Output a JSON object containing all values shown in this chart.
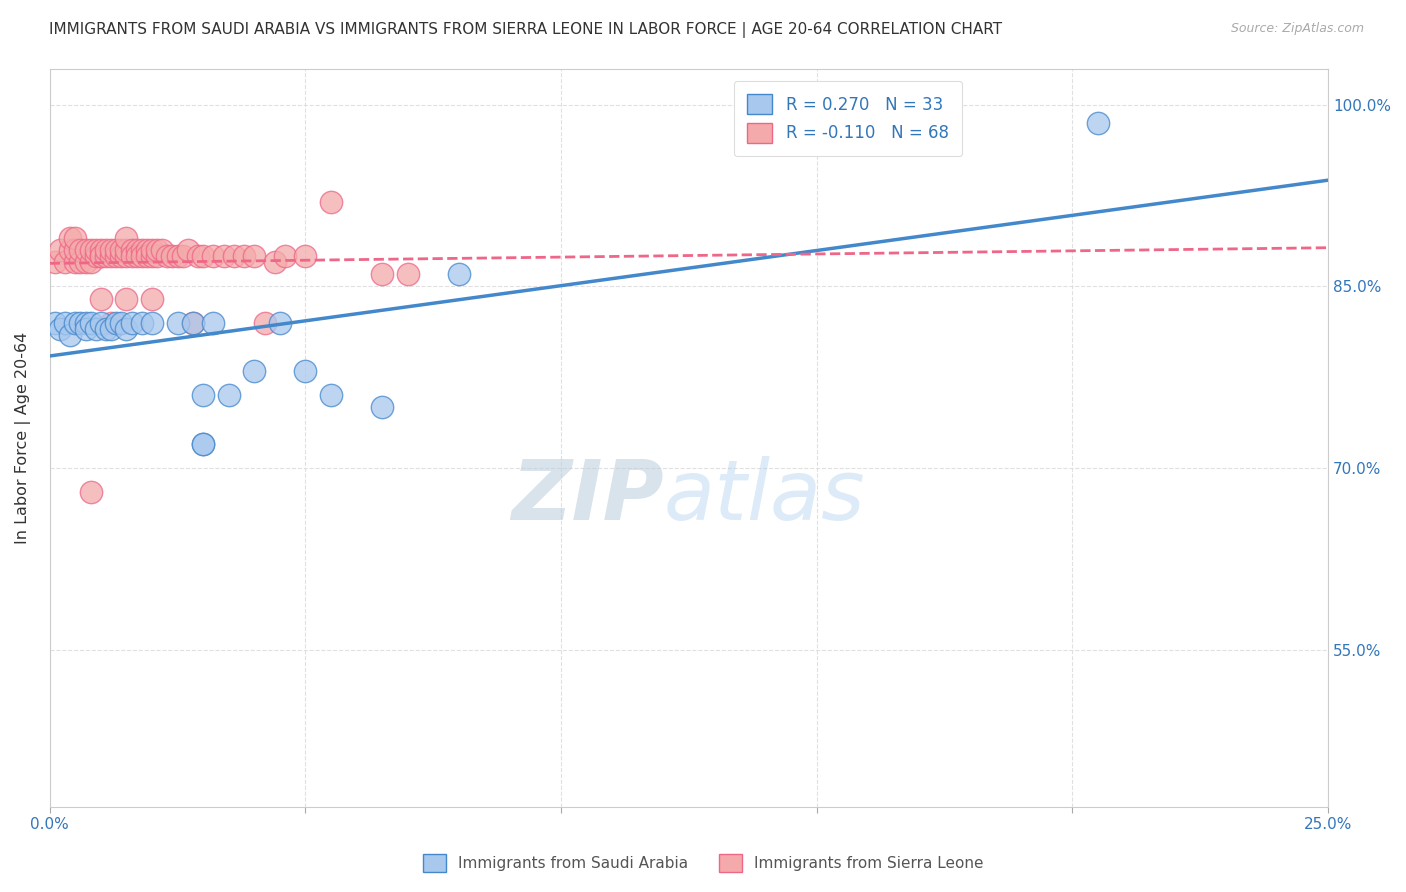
{
  "title": "IMMIGRANTS FROM SAUDI ARABIA VS IMMIGRANTS FROM SIERRA LEONE IN LABOR FORCE | AGE 20-64 CORRELATION CHART",
  "source": "Source: ZipAtlas.com",
  "ylabel_label": "In Labor Force | Age 20-64",
  "xlim": [
    0.0,
    0.25
  ],
  "ylim": [
    0.42,
    1.03
  ],
  "xtick_positions": [
    0.0,
    0.05,
    0.1,
    0.15,
    0.2,
    0.25
  ],
  "xticklabels": [
    "0.0%",
    "",
    "",
    "",
    "",
    "25.0%"
  ],
  "ytick_positions": [
    0.55,
    0.7,
    0.85,
    1.0
  ],
  "yticklabels": [
    "55.0%",
    "70.0%",
    "85.0%",
    "100.0%"
  ],
  "R_saudi": 0.27,
  "N_saudi": 33,
  "R_sierra": -0.11,
  "N_sierra": 68,
  "color_saudi": "#A8C8EE",
  "color_sierra": "#F4AAAA",
  "line_color_saudi": "#4488CC",
  "line_color_sierra": "#EE6688",
  "saudi_x": [
    0.001,
    0.002,
    0.003,
    0.004,
    0.005,
    0.006,
    0.007,
    0.007,
    0.008,
    0.009,
    0.01,
    0.011,
    0.012,
    0.013,
    0.014,
    0.015,
    0.016,
    0.018,
    0.02,
    0.025,
    0.028,
    0.03,
    0.032,
    0.035,
    0.04,
    0.045,
    0.05,
    0.055,
    0.065,
    0.08,
    0.03,
    0.03,
    0.205
  ],
  "saudi_y": [
    0.82,
    0.815,
    0.82,
    0.81,
    0.82,
    0.82,
    0.82,
    0.815,
    0.82,
    0.815,
    0.82,
    0.815,
    0.815,
    0.82,
    0.82,
    0.815,
    0.82,
    0.82,
    0.82,
    0.82,
    0.82,
    0.76,
    0.82,
    0.76,
    0.78,
    0.82,
    0.78,
    0.76,
    0.75,
    0.86,
    0.72,
    0.72,
    0.985
  ],
  "sierra_x": [
    0.001,
    0.002,
    0.003,
    0.004,
    0.004,
    0.005,
    0.005,
    0.005,
    0.006,
    0.006,
    0.007,
    0.007,
    0.008,
    0.008,
    0.009,
    0.009,
    0.01,
    0.01,
    0.01,
    0.011,
    0.011,
    0.012,
    0.012,
    0.013,
    0.013,
    0.014,
    0.014,
    0.015,
    0.015,
    0.015,
    0.016,
    0.016,
    0.017,
    0.017,
    0.018,
    0.018,
    0.019,
    0.019,
    0.02,
    0.02,
    0.021,
    0.021,
    0.022,
    0.023,
    0.024,
    0.025,
    0.026,
    0.027,
    0.028,
    0.029,
    0.03,
    0.032,
    0.034,
    0.036,
    0.038,
    0.04,
    0.042,
    0.044,
    0.046,
    0.05,
    0.055,
    0.065,
    0.07,
    0.015,
    0.02,
    0.01,
    0.012,
    0.008
  ],
  "sierra_y": [
    0.87,
    0.88,
    0.87,
    0.88,
    0.89,
    0.87,
    0.88,
    0.89,
    0.87,
    0.88,
    0.87,
    0.88,
    0.87,
    0.88,
    0.875,
    0.88,
    0.875,
    0.88,
    0.875,
    0.875,
    0.88,
    0.875,
    0.88,
    0.875,
    0.88,
    0.875,
    0.88,
    0.875,
    0.88,
    0.89,
    0.88,
    0.875,
    0.88,
    0.875,
    0.88,
    0.875,
    0.88,
    0.875,
    0.875,
    0.88,
    0.875,
    0.88,
    0.88,
    0.875,
    0.875,
    0.875,
    0.875,
    0.88,
    0.82,
    0.875,
    0.875,
    0.875,
    0.875,
    0.875,
    0.875,
    0.875,
    0.82,
    0.87,
    0.875,
    0.875,
    0.92,
    0.86,
    0.86,
    0.84,
    0.84,
    0.84,
    0.82,
    0.68
  ],
  "watermark_zip": "ZIP",
  "watermark_atlas": "atlas",
  "background_color": "#FFFFFF",
  "grid_color": "#DDDDDD"
}
